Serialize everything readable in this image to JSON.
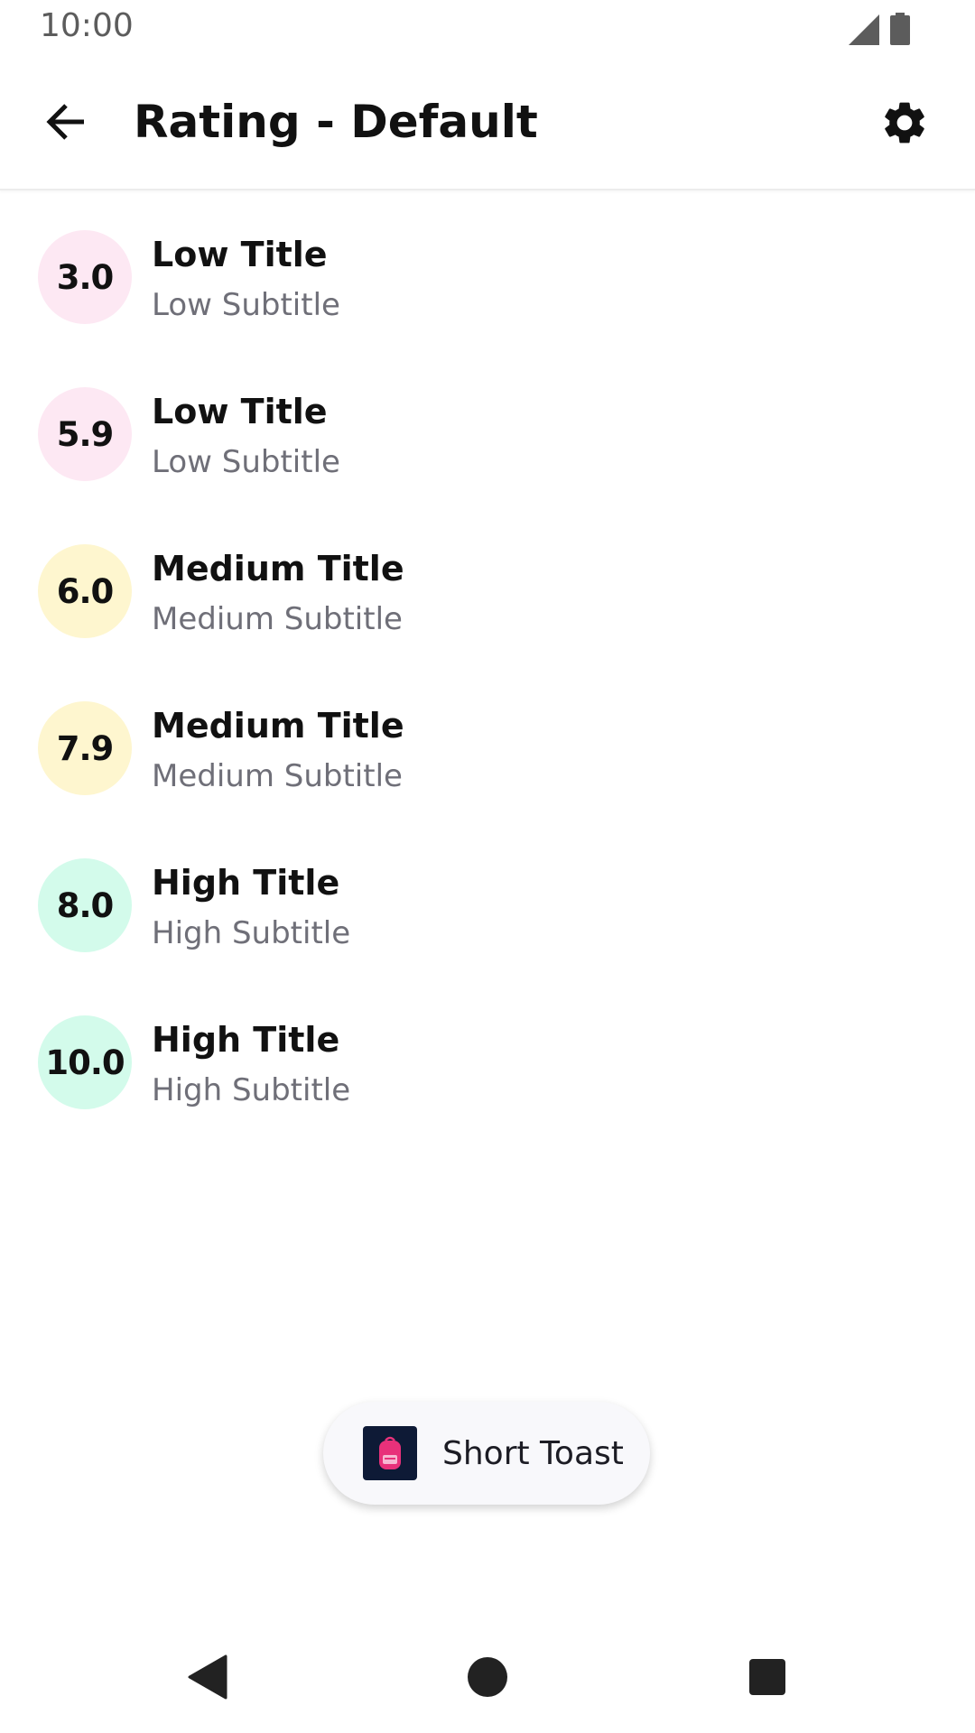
{
  "status_bar": {
    "time": "10:00",
    "icons": [
      "cellular-signal-icon",
      "battery-icon"
    ]
  },
  "app_bar": {
    "title": "Rating - Default",
    "back_icon": "arrow-back-icon",
    "settings_icon": "gear-icon"
  },
  "colors": {
    "low": "#fde8f3",
    "medium": "#fef6cf",
    "high": "#d3fbeb",
    "toast_icon_bg": "#0e1a36",
    "toast_icon_accent": "#e8317a"
  },
  "items": [
    {
      "rating": "3.0",
      "title": "Low Title",
      "subtitle": "Low Subtitle",
      "level": "low"
    },
    {
      "rating": "5.9",
      "title": "Low Title",
      "subtitle": "Low Subtitle",
      "level": "low"
    },
    {
      "rating": "6.0",
      "title": "Medium Title",
      "subtitle": "Medium Subtitle",
      "level": "medium"
    },
    {
      "rating": "7.9",
      "title": "Medium Title",
      "subtitle": "Medium Subtitle",
      "level": "medium"
    },
    {
      "rating": "8.0",
      "title": "High Title",
      "subtitle": "High Subtitle",
      "level": "high"
    },
    {
      "rating": "10.0",
      "title": "High Title",
      "subtitle": "High Subtitle",
      "level": "high"
    }
  ],
  "toast": {
    "text": "Short Toast",
    "icon": "backpack-icon"
  },
  "nav_bar": {
    "icons": [
      "back-triangle-icon",
      "home-circle-icon",
      "recents-square-icon"
    ]
  }
}
